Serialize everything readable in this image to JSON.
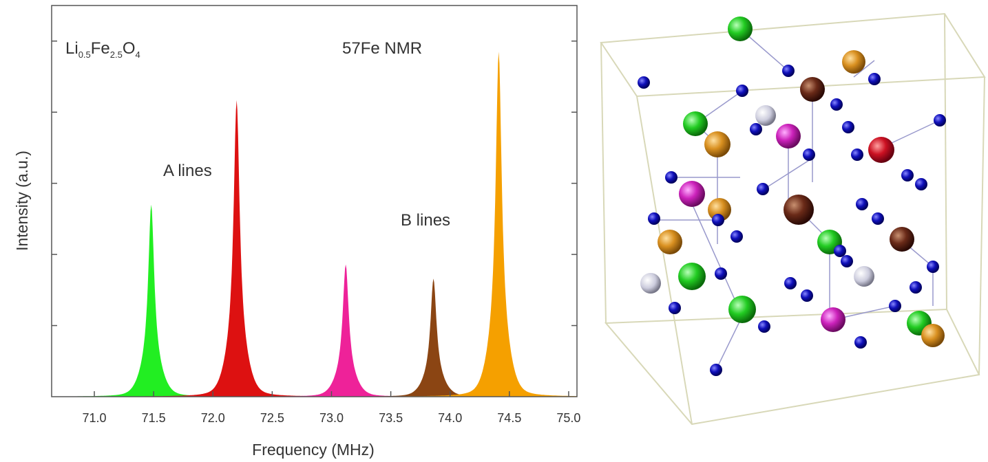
{
  "chart_data": {
    "type": "spectrum",
    "compound": [
      "Li",
      "0.5",
      "Fe",
      "2.5",
      "O",
      "4"
    ],
    "title": "57Fe NMR",
    "annotations": [
      "A lines",
      "B lines"
    ],
    "xlabel": "Frequency (MHz)",
    "ylabel": "Intensity (a.u.)",
    "x": [
      71.48,
      72.2,
      73.12,
      73.86,
      74.41
    ],
    "values": [
      2.7,
      4.17,
      1.86,
      1.66,
      4.85
    ],
    "colors": [
      "#22ee22",
      "#dd1111",
      "#ee2299",
      "#8b4513",
      "#f5a000"
    ],
    "xlim": [
      70.64,
      75.07
    ],
    "ylim": [
      0,
      5.5
    ],
    "xticks": [
      {
        "value": 71,
        "label": "71.0"
      },
      71.5,
      {
        "value": 72,
        "label": "72.0"
      },
      72.5,
      {
        "value": 73,
        "label": "73.0"
      },
      73.5,
      {
        "value": 74,
        "label": "74.0"
      },
      74.5,
      {
        "value": 75,
        "label": "75.0"
      }
    ],
    "yticks": [
      1,
      2,
      3,
      4,
      5
    ]
  }
}
